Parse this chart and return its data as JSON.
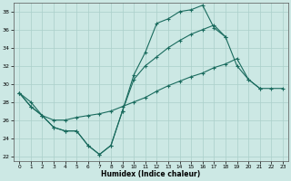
{
  "xlabel": "Humidex (Indice chaleur)",
  "bg_color": "#cce8e4",
  "grid_color": "#aacfca",
  "line_color": "#1a6b5e",
  "xlim": [
    -0.5,
    23.5
  ],
  "ylim": [
    21.5,
    39
  ],
  "xticks": [
    0,
    1,
    2,
    3,
    4,
    5,
    6,
    7,
    8,
    9,
    10,
    11,
    12,
    13,
    14,
    15,
    16,
    17,
    18,
    19,
    20,
    21,
    22,
    23
  ],
  "yticks": [
    22,
    24,
    26,
    28,
    30,
    32,
    34,
    36,
    38
  ],
  "line1_y": [
    29.0,
    27.5,
    26.5,
    25.2,
    24.8,
    24.8,
    23.2,
    22.2,
    23.2,
    27.0,
    31.0,
    33.5,
    36.7,
    37.2,
    38.0,
    38.2,
    38.7,
    36.2,
    35.2,
    null,
    null,
    null,
    null,
    null
  ],
  "line2_y": [
    29.0,
    27.5,
    26.5,
    25.2,
    24.8,
    24.8,
    23.2,
    22.2,
    23.2,
    27.0,
    30.5,
    32.0,
    33.0,
    34.0,
    34.8,
    35.5,
    36.0,
    36.5,
    35.2,
    32.0,
    30.5,
    29.5,
    null,
    null
  ],
  "line3_y": [
    29.0,
    28.0,
    26.5,
    26.0,
    26.0,
    26.3,
    26.5,
    26.7,
    27.0,
    27.5,
    28.0,
    28.5,
    29.2,
    29.8,
    30.3,
    30.8,
    31.2,
    31.8,
    32.2,
    32.8,
    30.5,
    29.5,
    29.5,
    29.5
  ]
}
